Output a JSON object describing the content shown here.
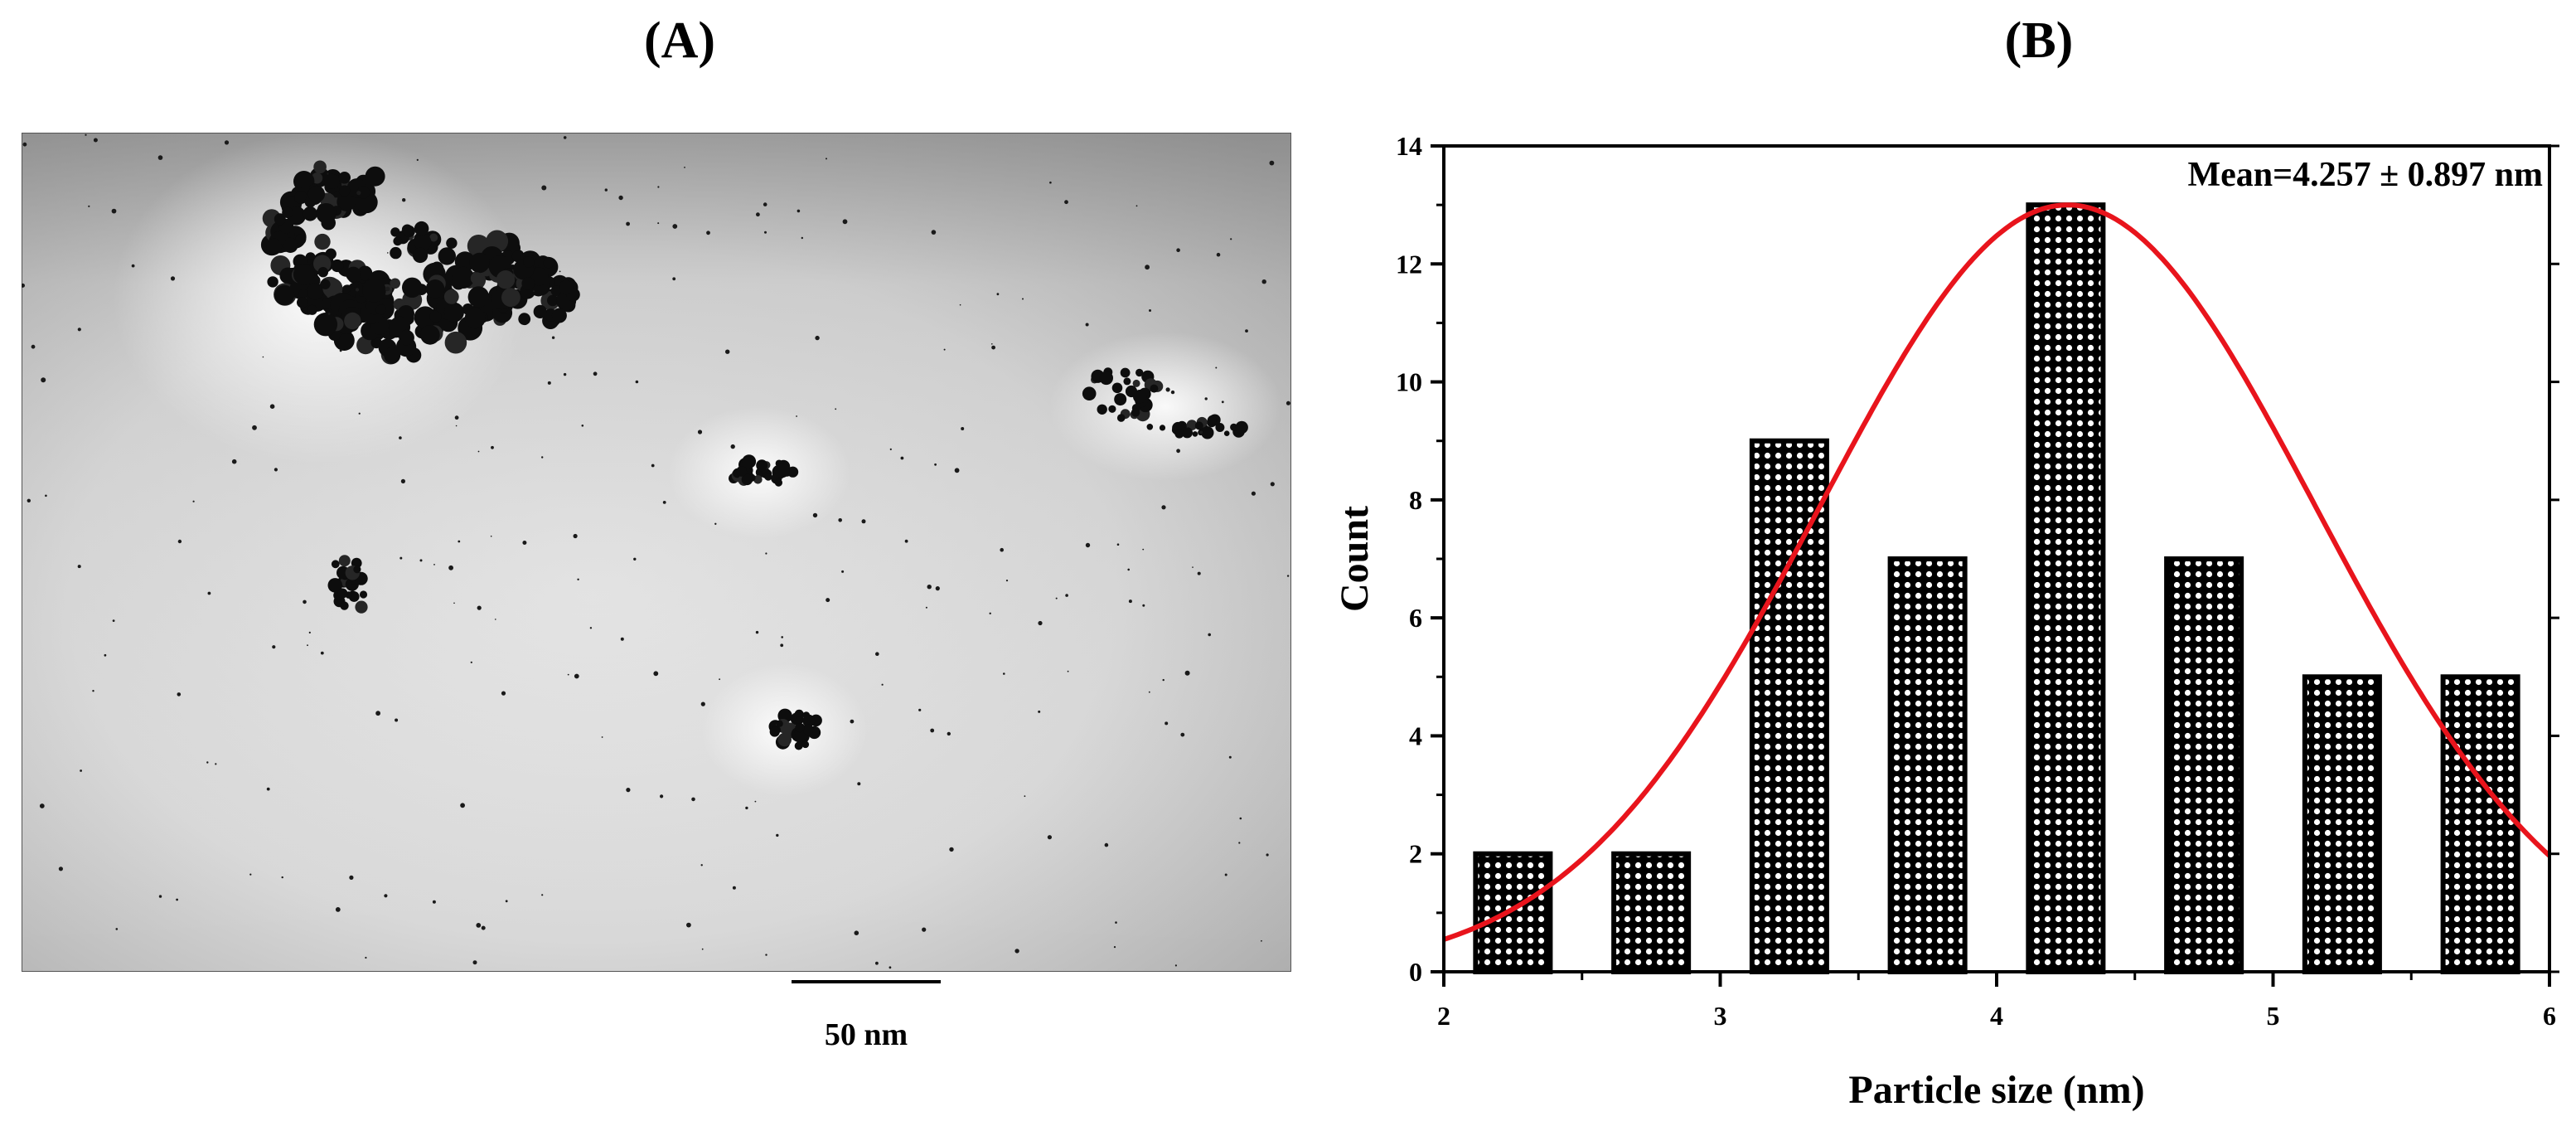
{
  "panels": {
    "a_label": "(A)",
    "b_label": "(B)"
  },
  "tem_image": {
    "scale_bar_label": "50 nm"
  },
  "chart_data": {
    "type": "bar",
    "x": [
      2.25,
      2.75,
      3.25,
      3.75,
      4.25,
      4.75,
      5.25,
      5.75
    ],
    "values": [
      2,
      2,
      9,
      7,
      13,
      7,
      5,
      5
    ],
    "bin_width": 0.27,
    "xlabel": "Particle size (nm)",
    "ylabel": "Count",
    "xlim": [
      2,
      6
    ],
    "ylim": [
      0,
      14
    ],
    "xticks": [
      2,
      3,
      4,
      5,
      6
    ],
    "yticks": [
      0,
      2,
      4,
      6,
      8,
      10,
      12,
      14
    ],
    "annotation": "Mean=4.257 ± 0.897 nm",
    "fit": {
      "type": "gaussian",
      "mean": 4.257,
      "sigma": 0.897,
      "amplitude": 13,
      "color": "#e8141c"
    },
    "grid": false,
    "bar_pattern": "dotted",
    "colors": {
      "bar_fill": "#000000",
      "bar_dots": "#ffffff"
    }
  }
}
